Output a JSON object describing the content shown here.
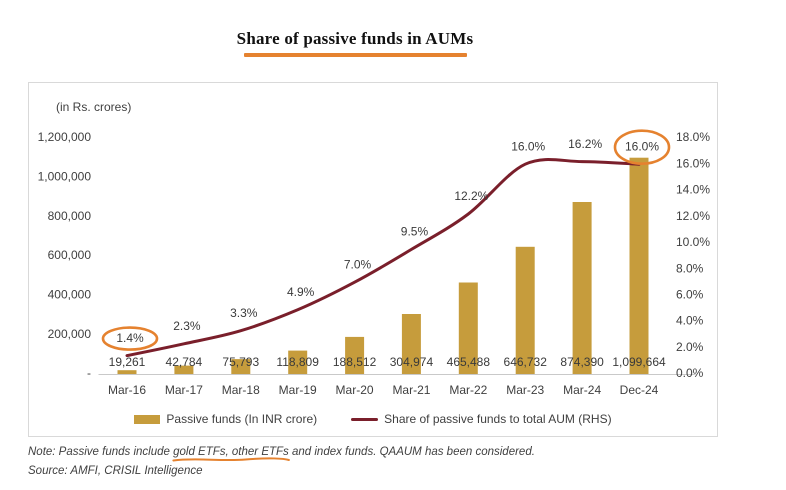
{
  "page": {
    "title": "Share of passive funds in AUMs"
  },
  "chart": {
    "unit_label": "(in Rs. crores)",
    "legend": [
      {
        "label": "Passive funds (In INR crore)",
        "type": "bar"
      },
      {
        "label": "Share of passive funds to total AUM (RHS)",
        "type": "line"
      }
    ]
  },
  "chart_data": {
    "type": "bar+line",
    "title": "Share of passive funds in AUMs",
    "categories": [
      "Mar-16",
      "Mar-17",
      "Mar-18",
      "Mar-19",
      "Mar-20",
      "Mar-21",
      "Mar-22",
      "Mar-23",
      "Mar-24",
      "Dec-24"
    ],
    "series": [
      {
        "name": "Passive funds (In INR crore)",
        "type": "bar",
        "axis": "left",
        "values": [
          19261,
          42784,
          75793,
          118809,
          188512,
          304974,
          465488,
          646732,
          874390,
          1099664
        ],
        "value_labels": [
          "19,261",
          "42,784",
          "75,793",
          "118,809",
          "188,512",
          "304,974",
          "465,488",
          "646,732",
          "874,390",
          "1,099,664"
        ]
      },
      {
        "name": "Share of passive funds to total AUM (RHS)",
        "type": "line",
        "axis": "right",
        "values": [
          1.4,
          2.3,
          3.3,
          4.9,
          7.0,
          9.5,
          12.2,
          16.0,
          16.2,
          16.0
        ],
        "value_labels": [
          "1.4%",
          "2.3%",
          "3.3%",
          "4.9%",
          "7.0%",
          "9.5%",
          "12.2%",
          "16.0%",
          "16.2%",
          "16.0%"
        ]
      }
    ],
    "left_axis": {
      "title": "(in Rs. crores)",
      "min": 0,
      "max": 1200000,
      "tick_step": 200000,
      "tick_labels": [
        "-",
        "200,000",
        "400,000",
        "600,000",
        "800,000",
        "1,000,000",
        "1,200,000"
      ]
    },
    "right_axis": {
      "min": 0,
      "max": 18,
      "tick_step": 2,
      "tick_labels": [
        "0.0%",
        "2.0%",
        "4.0%",
        "6.0%",
        "8.0%",
        "10.0%",
        "12.0%",
        "14.0%",
        "16.0%",
        "18.0%"
      ]
    },
    "grid": "off",
    "legend_position": "bottom",
    "annotations": {
      "circled_point_indices": [
        0,
        9
      ],
      "circled_values": [
        "1.4%",
        "16.0%"
      ],
      "circle_color": "#E5822F"
    }
  },
  "footer": {
    "note_prefix": "Note: Passive funds include ",
    "note_underlined": "gold ETFs, other ETFs",
    "note_suffix": " and index funds. QAAUM has been considered.",
    "source": "Source: AMFI, CRISIL Intelligence"
  },
  "colors": {
    "bar": "#C69C3C",
    "line": "#7A1F2B",
    "accent_orange": "#E5822F",
    "axis_text": "#3F3F3F",
    "axis_line": "#C9C9C9",
    "panel_border": "#D9D9D9"
  }
}
